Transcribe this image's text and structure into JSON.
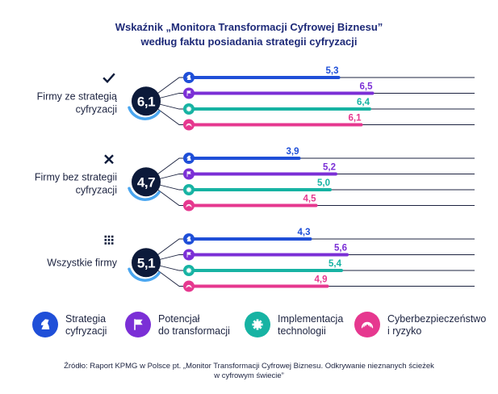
{
  "chart_data": {
    "type": "bar",
    "title_lines": [
      "Wskaźnik „Monitora Transformacji Cyfrowej Biznesu”",
      "według faktu posiadania strategii cyfryzacji"
    ],
    "xlim": [
      0,
      10
    ],
    "categories": [
      "Firmy ze strategią cyfryzacji",
      "Firmy bez strategii cyfryzacji",
      "Wszystkie firmy"
    ],
    "groups": [
      {
        "label_lines": [
          "Firmy ze strategią",
          "cyfryzacji"
        ],
        "icon": "check-icon",
        "score": "6,1",
        "values": [
          5.3,
          6.5,
          6.4,
          6.1
        ],
        "labels": [
          "5,3",
          "6,5",
          "6,4",
          "6,1"
        ]
      },
      {
        "label_lines": [
          "Firmy bez strategii",
          "cyfryzacji"
        ],
        "icon": "cross-icon",
        "score": "4,7",
        "values": [
          3.9,
          5.2,
          5.0,
          4.5
        ],
        "labels": [
          "3,9",
          "5,2",
          "5,0",
          "4,5"
        ]
      },
      {
        "label_lines": [
          "Wszystkie firmy"
        ],
        "icon": "grid-icon",
        "score": "5,1",
        "values": [
          4.3,
          5.6,
          5.4,
          4.9
        ],
        "labels": [
          "4,3",
          "5,6",
          "5,4",
          "4,9"
        ]
      }
    ],
    "series": [
      {
        "name": "Strategia cyfryzacji",
        "legend_lines": [
          "Strategia",
          "cyfryzacji"
        ],
        "color": "#1f4fd8",
        "icon": "chess-knight-icon"
      },
      {
        "name": "Potencjał do transformacji",
        "legend_lines": [
          "Potencjał",
          "do transformacji"
        ],
        "color": "#7b2fd6",
        "icon": "flag-icon"
      },
      {
        "name": "Implementacja technologii",
        "legend_lines": [
          "Implementacja",
          "technologii"
        ],
        "color": "#17b3a3",
        "icon": "gear-icon"
      },
      {
        "name": "Cyberbezpieczeństwo i ryzyko",
        "legend_lines": [
          "Cyberbezpieczeństwo",
          "i ryzyko"
        ],
        "color": "#e6388f",
        "icon": "fingerprint-icon"
      }
    ],
    "source_lines": [
      "Źródło: Raport KPMG w Polsce pt. „Monitor Transformacji Cyfrowej Biznesu. Odkrywanie nieznanych ścieżek",
      "w cyfrowym świecie”"
    ],
    "colors": {
      "navy": "#0c1a3a",
      "title": "#1e2a78",
      "track": "#1c2340"
    }
  }
}
